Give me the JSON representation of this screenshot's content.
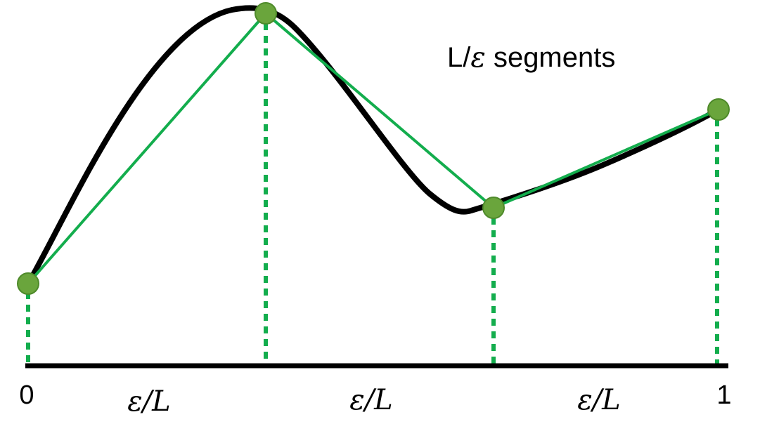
{
  "diagram": {
    "title_prefix": "L/",
    "title_symbol": "ε",
    "title_suffix": " segments",
    "axis_start_label": "0",
    "axis_end_label": "1",
    "interval_labels": [
      "ε/L",
      "ε/L",
      "ε/L"
    ]
  },
  "colors": {
    "curve": "#000000",
    "approximation": "#13ad4d",
    "point_fill": "#6aa53c",
    "point_stroke": "#4e8a2a",
    "dotted": "#13ad4d",
    "axis": "#000000"
  }
}
